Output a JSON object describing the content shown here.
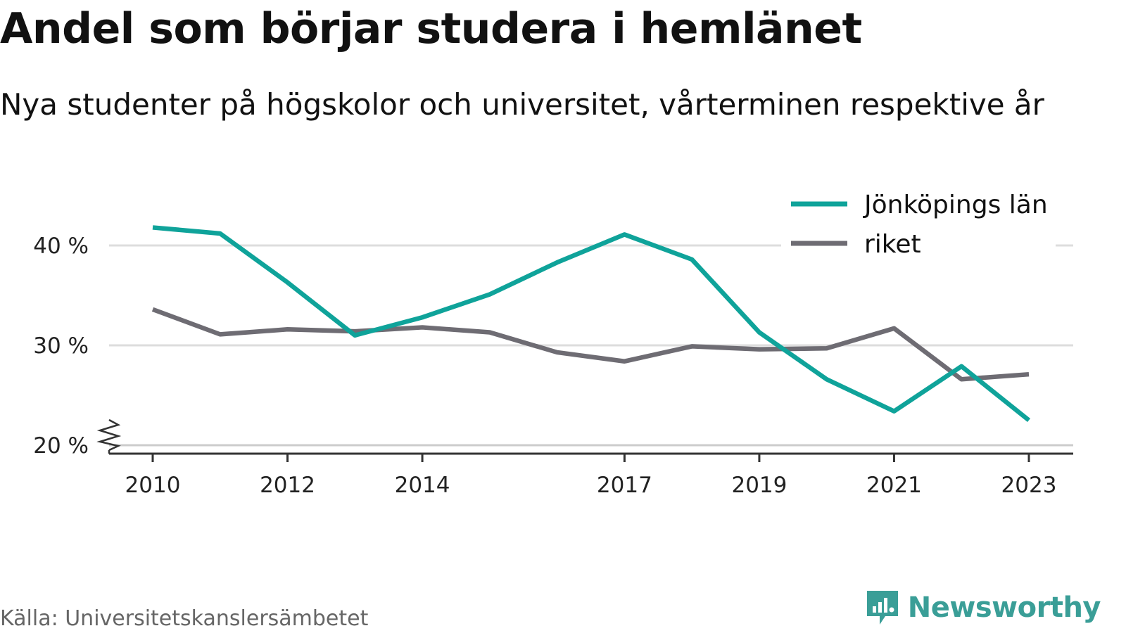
{
  "header": {
    "title": "Andel som börjar studera i hemlänet",
    "subtitle": "Nya studenter på högskolor och universitet, vårterminen respektive år"
  },
  "footer": {
    "source": "Källa: Universitetskanslersämbetet",
    "brand": "Newsworthy",
    "brand_icon": "newsworthy-logo-icon",
    "brand_color": "#3a9e97"
  },
  "chart_data": {
    "type": "line",
    "x": [
      2010,
      2011,
      2012,
      2013,
      2014,
      2015,
      2016,
      2017,
      2018,
      2019,
      2020,
      2021,
      2022,
      2023
    ],
    "x_tick_labels": [
      "2010",
      "2012",
      "2014",
      "2017",
      "2019",
      "2021",
      "2023"
    ],
    "y_ticks": [
      20,
      30,
      40
    ],
    "y_tick_labels": [
      "20 %",
      "30 %",
      "40 %"
    ],
    "ylim": [
      20,
      43
    ],
    "y_axis_break": true,
    "grid": "horizontal",
    "legend_position": "top-right",
    "series": [
      {
        "name": "Jönköpings län",
        "color": "#0fa39a",
        "values": [
          41.8,
          41.2,
          36.3,
          31.0,
          32.8,
          35.1,
          38.3,
          41.1,
          38.6,
          31.3,
          26.6,
          23.4,
          27.9,
          22.5
        ]
      },
      {
        "name": "riket",
        "color": "#6e6c73",
        "values": [
          33.6,
          31.1,
          31.6,
          31.4,
          31.8,
          31.3,
          29.3,
          28.4,
          29.9,
          29.6,
          29.7,
          31.7,
          26.6,
          27.1
        ]
      }
    ]
  }
}
